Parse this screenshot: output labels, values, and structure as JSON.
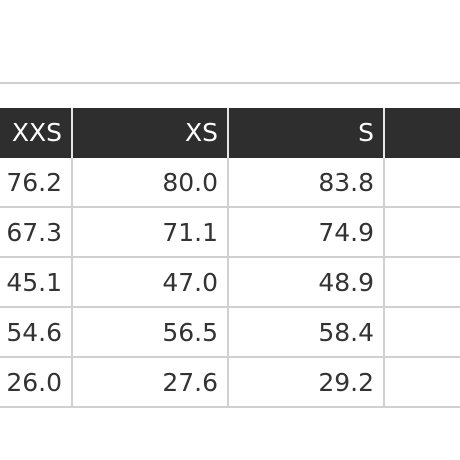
{
  "table": {
    "header": [
      "XXS",
      "XS",
      "S"
    ],
    "rows": [
      [
        "76.2",
        "80.0",
        "83.8"
      ],
      [
        "67.3",
        "71.1",
        "74.9"
      ],
      [
        "45.1",
        "47.0",
        "48.9"
      ],
      [
        "54.6",
        "56.5",
        "58.4"
      ],
      [
        "26.0",
        "27.6",
        "29.2"
      ]
    ]
  }
}
